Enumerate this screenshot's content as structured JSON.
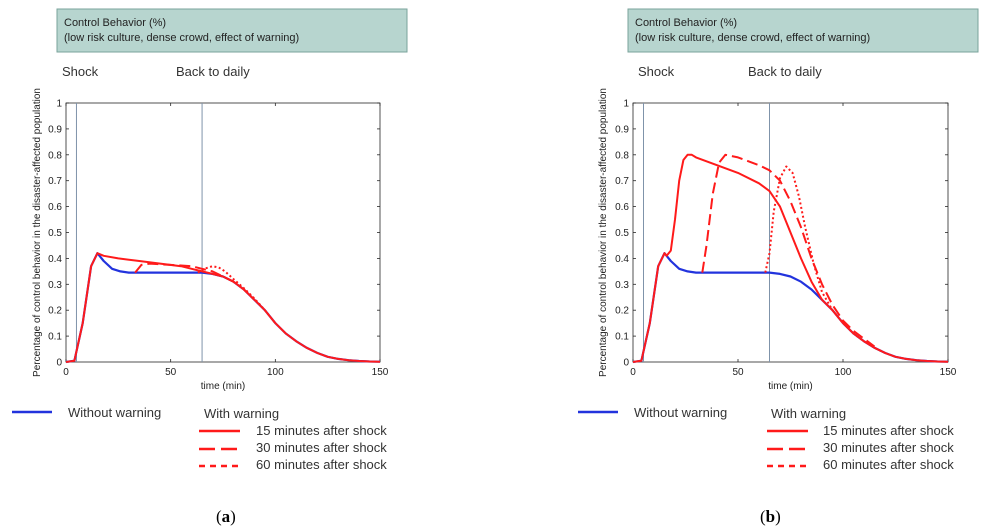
{
  "panels": [
    {
      "panel_label_pre": "(",
      "panel_letter": "a",
      "panel_label_post": ")",
      "header": {
        "line1": "Control Behavior (%)",
        "line2": "(low risk culture, dense crowd, effect of warning)"
      },
      "events": {
        "shock": "Shock",
        "back": "Back to daily"
      },
      "legend": {
        "without": "Without warning",
        "with_title": "With warning",
        "items": [
          "15 minutes after shock",
          "30 minutes after shock",
          "60 minutes after shock"
        ]
      }
    },
    {
      "panel_label_pre": "(",
      "panel_letter": "b",
      "panel_label_post": ")",
      "header": {
        "line1": "Control Behavior (%)",
        "line2": "(low risk culture, dense crowd, effect of warning)"
      },
      "events": {
        "shock": "Shock",
        "back": "Back to daily"
      },
      "legend": {
        "without": "Without warning",
        "with_title": "With warning",
        "items": [
          "15 minutes after shock",
          "30 minutes after shock",
          "60 minutes after shock"
        ]
      }
    }
  ],
  "colors": {
    "header_bg": "#b7d5cf",
    "header_border": "#7aa39b",
    "without_warning": "#2233dd",
    "with_warning": "#ff1a1a",
    "event_line": "#7f93aa"
  },
  "chart_data": [
    {
      "type": "line",
      "xlabel": "time (min)",
      "ylabel": "Percentage of control behavior in the disaster-affected population",
      "xlim": [
        0,
        150
      ],
      "ylim": [
        0,
        1
      ],
      "xticks": [
        "0",
        "50",
        "100",
        "150"
      ],
      "yticks": [
        "0",
        "0.1",
        "0.2",
        "0.3",
        "0.4",
        "0.5",
        "0.6",
        "0.7",
        "0.8",
        "0.9",
        "1"
      ],
      "event_lines_x": [
        5,
        65
      ],
      "series": [
        {
          "name": "Without warning",
          "style": "solid",
          "color": "#2233dd",
          "x": [
            0,
            4,
            8,
            12,
            15,
            18,
            22,
            26,
            30,
            40,
            50,
            60,
            65,
            70,
            75,
            80,
            85,
            90,
            95,
            100,
            105,
            110,
            115,
            120,
            125,
            130,
            135,
            140,
            145,
            150
          ],
          "y": [
            0,
            0.005,
            0.15,
            0.37,
            0.42,
            0.39,
            0.36,
            0.35,
            0.345,
            0.345,
            0.345,
            0.345,
            0.345,
            0.34,
            0.33,
            0.31,
            0.28,
            0.24,
            0.2,
            0.15,
            0.11,
            0.08,
            0.055,
            0.035,
            0.02,
            0.012,
            0.007,
            0.004,
            0.002,
            0.001
          ]
        },
        {
          "name": "15 minutes after shock",
          "style": "solid",
          "color": "#ff1a1a",
          "x": [
            0,
            4,
            8,
            12,
            15,
            18,
            25,
            35,
            45,
            55,
            60,
            65,
            70,
            75,
            80,
            85,
            90,
            95,
            100,
            105,
            110,
            115,
            120,
            125,
            130,
            135,
            140,
            145,
            150
          ],
          "y": [
            0,
            0.005,
            0.15,
            0.37,
            0.42,
            0.41,
            0.4,
            0.39,
            0.38,
            0.37,
            0.36,
            0.35,
            0.34,
            0.33,
            0.31,
            0.28,
            0.24,
            0.2,
            0.15,
            0.11,
            0.08,
            0.055,
            0.035,
            0.02,
            0.012,
            0.007,
            0.004,
            0.002,
            0.001
          ]
        },
        {
          "name": "30 minutes after shock",
          "style": "dashed",
          "color": "#ff1a1a",
          "x": [
            33,
            36,
            40,
            50,
            60,
            65,
            70,
            75,
            80,
            85,
            90
          ],
          "y": [
            0.345,
            0.375,
            0.38,
            0.375,
            0.37,
            0.36,
            0.35,
            0.33,
            0.31,
            0.28,
            0.24
          ]
        },
        {
          "name": "60 minutes after shock",
          "style": "dotted",
          "color": "#ff1a1a",
          "x": [
            63,
            66,
            70,
            73,
            76,
            80,
            85,
            90,
            95,
            100
          ],
          "y": [
            0.345,
            0.36,
            0.37,
            0.365,
            0.35,
            0.32,
            0.285,
            0.245,
            0.2,
            0.15
          ]
        }
      ]
    },
    {
      "type": "line",
      "xlabel": "time (min)",
      "ylabel": "Percentage of control behavior in the disaster-affected population",
      "xlim": [
        0,
        150
      ],
      "ylim": [
        0,
        1
      ],
      "xticks": [
        "0",
        "50",
        "100",
        "150"
      ],
      "yticks": [
        "0",
        "0.1",
        "0.2",
        "0.3",
        "0.4",
        "0.5",
        "0.6",
        "0.7",
        "0.8",
        "0.9",
        "1"
      ],
      "event_lines_x": [
        5,
        65
      ],
      "series": [
        {
          "name": "Without warning",
          "style": "solid",
          "color": "#2233dd",
          "x": [
            0,
            4,
            8,
            12,
            15,
            18,
            22,
            26,
            30,
            40,
            50,
            60,
            65,
            70,
            75,
            80,
            85,
            90,
            95,
            100,
            105,
            110,
            115,
            120,
            125,
            130,
            135,
            140,
            145,
            150
          ],
          "y": [
            0,
            0.005,
            0.15,
            0.37,
            0.42,
            0.39,
            0.36,
            0.35,
            0.345,
            0.345,
            0.345,
            0.345,
            0.345,
            0.34,
            0.33,
            0.31,
            0.28,
            0.24,
            0.2,
            0.15,
            0.11,
            0.08,
            0.055,
            0.035,
            0.02,
            0.012,
            0.007,
            0.004,
            0.002,
            0.001
          ]
        },
        {
          "name": "15 minutes after shock",
          "style": "solid",
          "color": "#ff1a1a",
          "x": [
            0,
            4,
            8,
            12,
            15,
            16,
            18,
            20,
            22,
            24,
            26,
            28,
            30,
            40,
            50,
            60,
            65,
            70,
            75,
            80,
            85,
            90,
            95,
            100,
            105,
            110,
            115,
            120,
            125,
            130,
            135,
            140,
            145,
            150
          ],
          "y": [
            0,
            0.005,
            0.15,
            0.37,
            0.42,
            0.41,
            0.43,
            0.55,
            0.7,
            0.78,
            0.8,
            0.8,
            0.79,
            0.76,
            0.73,
            0.69,
            0.66,
            0.6,
            0.5,
            0.4,
            0.31,
            0.24,
            0.2,
            0.15,
            0.11,
            0.08,
            0.055,
            0.035,
            0.02,
            0.012,
            0.007,
            0.004,
            0.002,
            0.001
          ]
        },
        {
          "name": "30 minutes after shock",
          "style": "dashed",
          "color": "#ff1a1a",
          "x": [
            33,
            35,
            38,
            41,
            44,
            50,
            60,
            65,
            70,
            75,
            80,
            85,
            90,
            95,
            100,
            105,
            110,
            115
          ],
          "y": [
            0.345,
            0.45,
            0.65,
            0.77,
            0.8,
            0.79,
            0.76,
            0.74,
            0.7,
            0.62,
            0.52,
            0.4,
            0.3,
            0.22,
            0.16,
            0.12,
            0.09,
            0.06
          ]
        },
        {
          "name": "60 minutes after shock",
          "style": "dotted",
          "color": "#ff1a1a",
          "x": [
            63,
            65,
            67,
            70,
            73,
            76,
            79,
            82,
            86,
            90,
            95,
            100,
            105,
            110,
            115,
            120
          ],
          "y": [
            0.345,
            0.42,
            0.58,
            0.71,
            0.755,
            0.73,
            0.64,
            0.52,
            0.38,
            0.27,
            0.2,
            0.15,
            0.11,
            0.08,
            0.055,
            0.035
          ]
        }
      ]
    }
  ]
}
